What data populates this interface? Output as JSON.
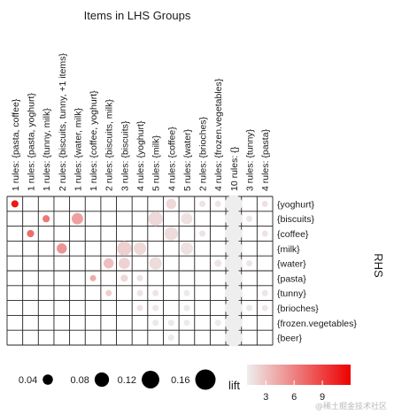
{
  "chart_data": {
    "type": "grouped-matrix",
    "title": "Items in LHS Groups",
    "ylabel": "RHS",
    "columns": [
      "1 rules: {pasta, coffee}",
      "1 rules: {pasta, yoghurt}",
      "1 rules: {tunny, milk}",
      "2 rules: {biscuits, tunny, +1 items}",
      "1 rules: {water, milk}",
      "1 rules: {coffee, yoghurt}",
      "2 rules: {biscuits, milk}",
      "3 rules: {biscuits}",
      "4 rules: {yoghurt}",
      "5 rules: {milk}",
      "4 rules: {coffee}",
      "5 rules: {water}",
      "2 rules: {brioches}",
      "4 rules: {frozen.vegetables}",
      "10 rules: {}",
      "3 rules: {tunny}",
      "4 rules: {pasta}"
    ],
    "rows": [
      "{yoghurt}",
      "{biscuits}",
      "{coffee}",
      "{milk}",
      "{water}",
      "{pasta}",
      "{tunny}",
      "{brioches}",
      "{frozen.vegetables}",
      "{beer}"
    ],
    "points": [
      {
        "col": 0,
        "row": 0,
        "support": 0.02,
        "lift": 11.0
      },
      {
        "col": 2,
        "row": 1,
        "support": 0.02,
        "lift": 6.5
      },
      {
        "col": 1,
        "row": 2,
        "support": 0.02,
        "lift": 7.0
      },
      {
        "col": 4,
        "row": 1,
        "support": 0.05,
        "lift": 4.6
      },
      {
        "col": 3,
        "row": 3,
        "support": 0.04,
        "lift": 5.2
      },
      {
        "col": 5,
        "row": 5,
        "support": 0.015,
        "lift": 4.0
      },
      {
        "col": 6,
        "row": 4,
        "support": 0.04,
        "lift": 3.2
      },
      {
        "col": 6,
        "row": 6,
        "support": 0.015,
        "lift": 2.5
      },
      {
        "col": 7,
        "row": 3,
        "support": 0.08,
        "lift": 2.4
      },
      {
        "col": 7,
        "row": 4,
        "support": 0.05,
        "lift": 2.3
      },
      {
        "col": 7,
        "row": 5,
        "support": 0.02,
        "lift": 2.0
      },
      {
        "col": 8,
        "row": 3,
        "support": 0.06,
        "lift": 2.0
      },
      {
        "col": 8,
        "row": 5,
        "support": 0.015,
        "lift": 1.6
      },
      {
        "col": 8,
        "row": 6,
        "support": 0.015,
        "lift": 1.5
      },
      {
        "col": 8,
        "row": 7,
        "support": 0.015,
        "lift": 1.5
      },
      {
        "col": 9,
        "row": 1,
        "support": 0.08,
        "lift": 2.0
      },
      {
        "col": 9,
        "row": 4,
        "support": 0.06,
        "lift": 1.9
      },
      {
        "col": 9,
        "row": 6,
        "support": 0.015,
        "lift": 1.5
      },
      {
        "col": 9,
        "row": 7,
        "support": 0.015,
        "lift": 1.4
      },
      {
        "col": 9,
        "row": 8,
        "support": 0.015,
        "lift": 1.3
      },
      {
        "col": 10,
        "row": 0,
        "support": 0.04,
        "lift": 2.0
      },
      {
        "col": 10,
        "row": 2,
        "support": 0.07,
        "lift": 1.9
      },
      {
        "col": 10,
        "row": 8,
        "support": 0.015,
        "lift": 1.3
      },
      {
        "col": 10,
        "row": 9,
        "support": 0.015,
        "lift": 1.2
      },
      {
        "col": 11,
        "row": 1,
        "support": 0.05,
        "lift": 1.6
      },
      {
        "col": 11,
        "row": 3,
        "support": 0.06,
        "lift": 1.6
      },
      {
        "col": 11,
        "row": 6,
        "support": 0.015,
        "lift": 1.3
      },
      {
        "col": 11,
        "row": 7,
        "support": 0.015,
        "lift": 1.3
      },
      {
        "col": 11,
        "row": 8,
        "support": 0.015,
        "lift": 1.2
      },
      {
        "col": 12,
        "row": 0,
        "support": 0.015,
        "lift": 1.6
      },
      {
        "col": 12,
        "row": 2,
        "support": 0.015,
        "lift": 1.5
      },
      {
        "col": 13,
        "row": 0,
        "support": 0.015,
        "lift": 1.5
      },
      {
        "col": 13,
        "row": 4,
        "support": 0.02,
        "lift": 1.5
      },
      {
        "col": 13,
        "row": 8,
        "support": 0.015,
        "lift": 1.2
      },
      {
        "col": 14,
        "row": 0,
        "support": 0.12,
        "lift": 1.0
      },
      {
        "col": 14,
        "row": 1,
        "support": 0.12,
        "lift": 1.0
      },
      {
        "col": 14,
        "row": 2,
        "support": 0.12,
        "lift": 1.0
      },
      {
        "col": 14,
        "row": 3,
        "support": 0.12,
        "lift": 1.0
      },
      {
        "col": 14,
        "row": 4,
        "support": 0.12,
        "lift": 1.0
      },
      {
        "col": 14,
        "row": 5,
        "support": 0.12,
        "lift": 1.0
      },
      {
        "col": 14,
        "row": 6,
        "support": 0.12,
        "lift": 1.0
      },
      {
        "col": 14,
        "row": 7,
        "support": 0.12,
        "lift": 1.0
      },
      {
        "col": 14,
        "row": 8,
        "support": 0.12,
        "lift": 1.0
      },
      {
        "col": 14,
        "row": 9,
        "support": 0.12,
        "lift": 1.0
      },
      {
        "col": 15,
        "row": 1,
        "support": 0.015,
        "lift": 1.4
      },
      {
        "col": 15,
        "row": 4,
        "support": 0.015,
        "lift": 1.4
      },
      {
        "col": 15,
        "row": 7,
        "support": 0.015,
        "lift": 1.3
      },
      {
        "col": 16,
        "row": 0,
        "support": 0.015,
        "lift": 1.6
      },
      {
        "col": 16,
        "row": 2,
        "support": 0.015,
        "lift": 1.5
      },
      {
        "col": 16,
        "row": 6,
        "support": 0.015,
        "lift": 1.4
      },
      {
        "col": 16,
        "row": 7,
        "support": 0.015,
        "lift": 1.4
      }
    ],
    "size_legend": {
      "title": "support",
      "values": [
        0.04,
        0.08,
        0.12,
        0.16
      ],
      "labels": [
        "0.04",
        "0.08",
        "0.12",
        "0.16"
      ],
      "color": "#000000"
    },
    "color_legend": {
      "title": "lift",
      "range": [
        1,
        12
      ],
      "ticks": [
        3,
        6,
        9
      ],
      "low_color": "#eeeeee",
      "high_color": "#ee0000"
    }
  },
  "watermark": "@稀土掘金技术社区"
}
